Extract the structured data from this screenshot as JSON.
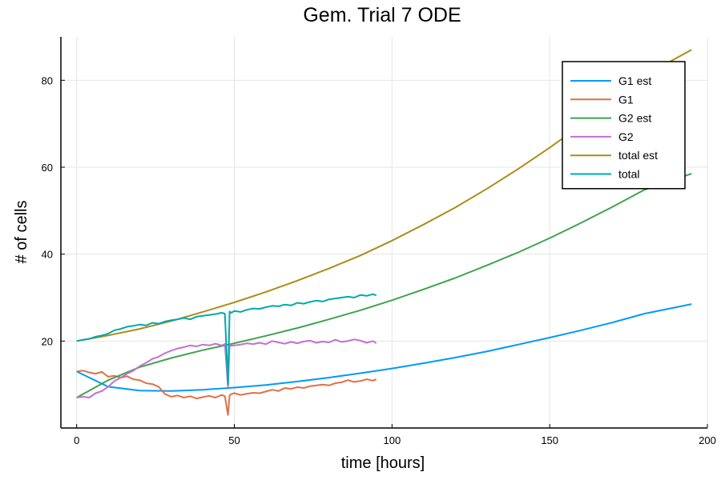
{
  "chart_data": {
    "type": "line",
    "title": "Gem. Trial 7 ODE",
    "xlabel": "time [hours]",
    "ylabel": "# of cells",
    "xlim": [
      -5,
      200
    ],
    "ylim": [
      0,
      90
    ],
    "xticks": [
      0,
      50,
      100,
      150,
      200
    ],
    "yticks": [
      20,
      40,
      60,
      80
    ],
    "grid": true,
    "legend_position": "top-right",
    "series": [
      {
        "name": "G1 est",
        "color": "#009af9",
        "x": [
          0,
          10,
          20,
          30,
          40,
          50,
          60,
          70,
          80,
          90,
          100,
          110,
          120,
          130,
          140,
          150,
          160,
          170,
          180,
          195
        ],
        "y": [
          13,
          9.5,
          8.6,
          8.5,
          8.8,
          9.3,
          9.9,
          10.7,
          11.6,
          12.6,
          13.7,
          14.9,
          16.2,
          17.6,
          19.2,
          20.8,
          22.5,
          24.3,
          26.3,
          28.5
        ]
      },
      {
        "name": "G1",
        "color": "#e26f46",
        "x": [
          0,
          2,
          4,
          6,
          8,
          10,
          12,
          14,
          16,
          18,
          20,
          22,
          24,
          26,
          28,
          30,
          32,
          34,
          36,
          38,
          40,
          42,
          44,
          46,
          47,
          48,
          48.5,
          49,
          50,
          52,
          54,
          56,
          58,
          60,
          62,
          64,
          66,
          68,
          70,
          72,
          74,
          76,
          78,
          80,
          82,
          84,
          86,
          88,
          90,
          92,
          94,
          95
        ],
        "y": [
          13,
          13.2,
          12.8,
          12.5,
          12.9,
          11.8,
          12.0,
          11.6,
          11.9,
          11.2,
          11.0,
          10.3,
          10.1,
          9.5,
          7.8,
          7.2,
          7.5,
          7.0,
          7.3,
          6.8,
          7.1,
          7.4,
          7.0,
          7.6,
          7.3,
          3.0,
          7.5,
          7.8,
          8.0,
          7.6,
          7.9,
          8.1,
          8.0,
          8.4,
          8.8,
          8.5,
          9.2,
          9.0,
          9.4,
          9.2,
          9.6,
          9.8,
          10.0,
          9.8,
          10.3,
          10.5,
          11.0,
          10.6,
          10.8,
          11.2,
          10.9,
          11.2
        ]
      },
      {
        "name": "G2 est",
        "color": "#3ea44e",
        "x": [
          0,
          10,
          20,
          30,
          40,
          50,
          60,
          70,
          80,
          90,
          100,
          110,
          120,
          130,
          140,
          150,
          160,
          170,
          180,
          195
        ],
        "y": [
          7,
          11,
          14,
          16.1,
          17.9,
          19.5,
          21.2,
          23,
          25,
          27.1,
          29.4,
          31.9,
          34.5,
          37.4,
          40.4,
          43.7,
          47.2,
          50.9,
          54.8,
          58.5
        ]
      },
      {
        "name": "G2",
        "color": "#c271d2",
        "x": [
          0,
          2,
          4,
          6,
          8,
          10,
          12,
          14,
          16,
          18,
          20,
          22,
          24,
          26,
          28,
          30,
          32,
          34,
          36,
          38,
          40,
          42,
          44,
          46,
          47,
          48,
          48.5,
          49,
          50,
          52,
          54,
          56,
          58,
          60,
          62,
          64,
          66,
          68,
          70,
          72,
          74,
          76,
          78,
          80,
          82,
          84,
          86,
          88,
          90,
          92,
          94,
          95
        ],
        "y": [
          7,
          7.2,
          7.0,
          8.0,
          8.5,
          9.5,
          10.8,
          11.6,
          12.5,
          13.2,
          14.2,
          15.0,
          15.9,
          16.4,
          17.2,
          17.8,
          18.3,
          18.6,
          19.0,
          18.8,
          19.2,
          19.0,
          19.4,
          19.0,
          19.3,
          9.5,
          19.2,
          18.9,
          19.0,
          19.2,
          19.5,
          19.3,
          19.6,
          19.3,
          20.0,
          19.7,
          19.4,
          19.8,
          19.5,
          19.9,
          20.1,
          19.6,
          19.9,
          19.7,
          20.3,
          19.8,
          20.0,
          20.4,
          20.1,
          19.6,
          20.0,
          19.5
        ]
      },
      {
        "name": "total est",
        "color": "#ac8d18",
        "x": [
          0,
          10,
          20,
          30,
          40,
          50,
          60,
          70,
          80,
          90,
          100,
          110,
          120,
          130,
          140,
          150,
          160,
          170,
          180,
          195
        ],
        "y": [
          20,
          21.3,
          22.8,
          24.6,
          26.7,
          28.9,
          31.3,
          33.9,
          36.7,
          39.7,
          43.1,
          46.8,
          50.7,
          55.0,
          59.6,
          64.5,
          69.7,
          75.2,
          81.1,
          87
        ]
      },
      {
        "name": "total",
        "color": "#00a9ad",
        "x": [
          0,
          2,
          4,
          6,
          8,
          10,
          12,
          14,
          16,
          18,
          20,
          22,
          24,
          26,
          28,
          30,
          32,
          34,
          36,
          38,
          40,
          42,
          44,
          46,
          47,
          48,
          48.5,
          49,
          50,
          52,
          54,
          56,
          58,
          60,
          62,
          64,
          66,
          68,
          70,
          72,
          74,
          76,
          78,
          80,
          82,
          84,
          86,
          88,
          90,
          92,
          94,
          95
        ],
        "y": [
          20,
          20.3,
          20.5,
          21.0,
          21.3,
          21.7,
          22.5,
          22.8,
          23.3,
          23.5,
          23.8,
          23.6,
          24.2,
          24.0,
          24.5,
          24.8,
          25.0,
          25.3,
          25.0,
          25.6,
          25.8,
          26.0,
          26.2,
          26.5,
          26.3,
          10.0,
          26.8,
          26.5,
          26.9,
          26.7,
          27.2,
          27.5,
          27.4,
          27.8,
          28.1,
          28.0,
          28.4,
          28.2,
          28.8,
          28.6,
          29.0,
          29.3,
          29.1,
          29.6,
          29.8,
          30.0,
          30.2,
          30.0,
          30.6,
          30.4,
          30.8,
          30.5
        ]
      }
    ]
  }
}
